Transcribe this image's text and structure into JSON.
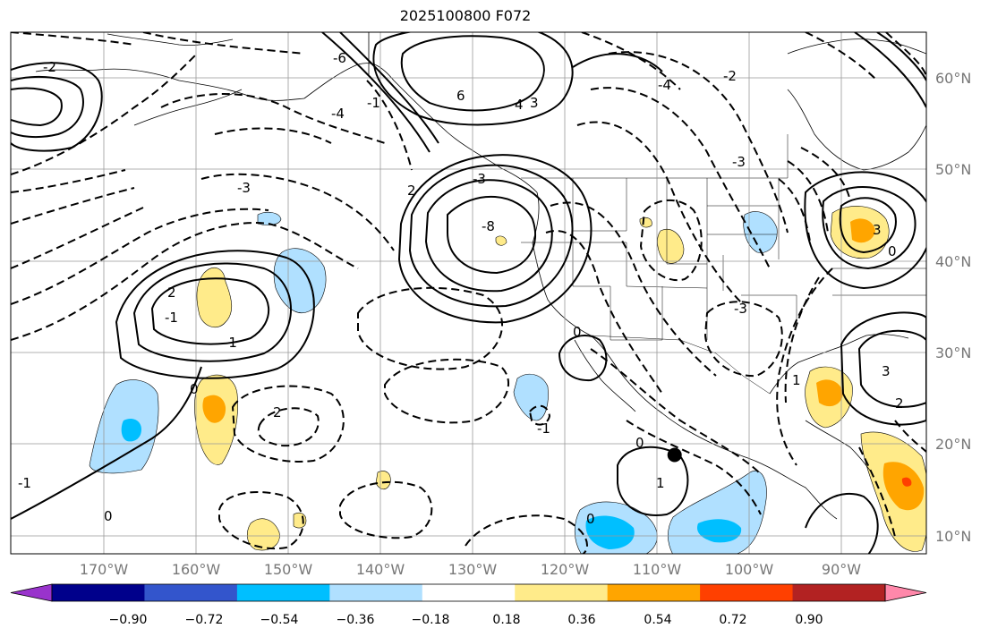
{
  "title": "2025100800 F072",
  "map": {
    "lon_range": [
      -180,
      -80
    ],
    "lat_range": [
      8,
      65
    ],
    "lon_ticks": [
      "170°W",
      "160°W",
      "150°W",
      "140°W",
      "130°W",
      "120°W",
      "110°W",
      "100°W",
      "90°W"
    ],
    "lat_ticks": [
      "60°N",
      "50°N",
      "40°N",
      "30°N",
      "20°N",
      "10°N"
    ],
    "gridlines": true,
    "contour_labels": [
      "-2",
      "-6",
      "-4",
      "-3",
      "-1",
      "-8",
      "-3",
      "3",
      "6",
      "4",
      "-3",
      "-2",
      "2",
      "-1",
      "-1",
      "0",
      "2",
      "0",
      "2",
      "-3",
      "-4",
      "0",
      "-1",
      "0",
      "1",
      "1",
      "0",
      "3",
      "3",
      "2",
      "0",
      "-1"
    ],
    "marker": {
      "name": "black-dot",
      "lon": -107.5,
      "lat": 18.8
    }
  },
  "colorbar": {
    "ticks": [
      "−0.90",
      "−0.72",
      "−0.54",
      "−0.36",
      "−0.18",
      "0.18",
      "0.36",
      "0.54",
      "0.72",
      "0.90"
    ],
    "colors": [
      "#9933cc",
      "#00008b",
      "#3355cc",
      "#00bfff",
      "#b0e0ff",
      "#ffffff",
      "#ffeb8a",
      "#ffa500",
      "#ff4000",
      "#b22222",
      "#ff88aa"
    ]
  }
}
